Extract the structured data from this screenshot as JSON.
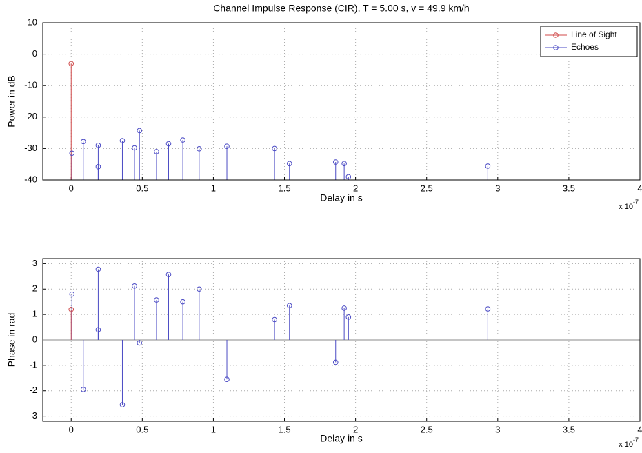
{
  "chart_data": [
    {
      "type": "stem",
      "title": "Channel Impulse Response (CIR), T = 5.00 s, v = 49.9 km/h",
      "x_label": "Delay in s",
      "y_label": "Power in dB",
      "x_multiplier": "x 10",
      "x_exponent": "-7",
      "xlim": [
        -0.2,
        4
      ],
      "ylim": [
        -40,
        10
      ],
      "xticks": [
        0,
        0.5,
        1,
        1.5,
        2,
        2.5,
        3,
        3.5,
        4
      ],
      "yticks": [
        10,
        0,
        -10,
        -20,
        -30,
        -40
      ],
      "grid": true,
      "legend": "upper right",
      "stem_base": "axis",
      "series": [
        {
          "name": "Line of Sight",
          "color": "#d04848",
          "x": [
            0
          ],
          "values": [
            -3
          ]
        },
        {
          "name": "Echoes",
          "color": "#4a4ac4",
          "x": [
            0.005,
            0.085,
            0.19,
            0.19,
            0.36,
            0.445,
            0.48,
            0.6,
            0.685,
            0.785,
            0.9,
            1.095,
            1.43,
            1.535,
            1.86,
            1.92,
            1.95,
            2.93
          ],
          "values": [
            -31.5,
            -27.8,
            -29,
            -35.8,
            -27.5,
            -29.8,
            -24.3,
            -31,
            -28.5,
            -27.3,
            -30.1,
            -29.3,
            -30,
            -34.8,
            -34.3,
            -34.8,
            -39,
            -35.6
          ]
        }
      ]
    },
    {
      "type": "stem",
      "x_label": "Delay in s",
      "y_label": "Phase in rad",
      "x_multiplier": "x 10",
      "x_exponent": "-7",
      "xlim": [
        -0.2,
        4
      ],
      "ylim": [
        -3.2,
        3.2
      ],
      "xticks": [
        0,
        0.5,
        1,
        1.5,
        2,
        2.5,
        3,
        3.5,
        4
      ],
      "yticks": [
        3,
        2,
        1,
        0,
        -1,
        -2,
        -3
      ],
      "grid": true,
      "stem_base": "zero",
      "series": [
        {
          "color": "#d04848",
          "x": [
            0
          ],
          "values": [
            1.2
          ]
        },
        {
          "color": "#4a4ac4",
          "x": [
            0.005,
            0.085,
            0.19,
            0.19,
            0.36,
            0.445,
            0.48,
            0.6,
            0.685,
            0.785,
            0.9,
            1.095,
            1.43,
            1.535,
            1.86,
            1.92,
            1.95,
            2.93
          ],
          "values": [
            1.8,
            -1.95,
            2.78,
            0.4,
            -2.55,
            2.12,
            -0.12,
            1.57,
            2.57,
            1.5,
            2.0,
            -1.55,
            0.8,
            1.35,
            -0.88,
            1.25,
            0.9,
            1.22
          ]
        }
      ]
    }
  ]
}
